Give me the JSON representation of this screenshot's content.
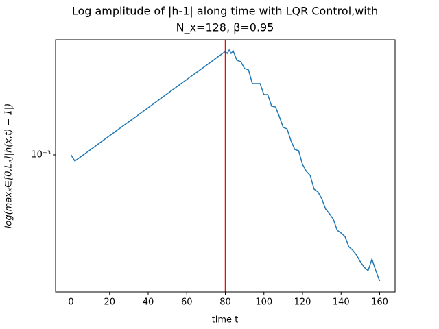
{
  "chart_data": {
    "type": "line",
    "title": [
      "Log amplitude of |h-1| along time with LQR Control,with",
      "N_x=128, β=0.95"
    ],
    "xlabel": "time t",
    "ylabel": "log(maxₓ∈[0,Lₓ]|h(x,t) − 1|)",
    "log_y": true,
    "x": [
      0,
      2,
      10,
      20,
      30,
      40,
      50,
      60,
      70,
      80,
      81,
      82,
      83,
      84,
      86,
      88,
      90,
      92,
      94,
      98,
      100,
      102,
      104,
      106,
      108,
      110,
      112,
      114,
      116,
      118,
      120,
      122,
      124,
      126,
      128,
      130,
      132,
      134,
      136,
      138,
      140,
      142,
      144,
      146,
      148,
      150,
      152,
      154,
      156,
      158,
      160
    ],
    "series": [
      {
        "color": "#1f77b4",
        "values": [
          0.001,
          0.00095,
          0.001043,
          0.001175,
          0.001321,
          0.001486,
          0.001674,
          0.001884,
          0.002118,
          0.002385,
          0.002344,
          0.002413,
          0.002344,
          0.002399,
          0.002213,
          0.002188,
          0.002065,
          0.002042,
          0.00182,
          0.00182,
          0.00166,
          0.00166,
          0.001505,
          0.001496,
          0.00138,
          0.001259,
          0.001245,
          0.001128,
          0.001047,
          0.001035,
          0.0009226,
          0.000871,
          0.0008414,
          0.0007499,
          0.0007328,
          0.0006918,
          0.0006345,
          0.0006095,
          0.0005821,
          0.0005309,
          0.0005188,
          0.0005041,
          0.0004624,
          0.0004493,
          0.0004315,
          0.0004074,
          0.000389,
          0.000378,
          0.0004169,
          0.000378,
          0.0003467
        ]
      }
    ],
    "vline": {
      "x": 80,
      "color": "red"
    },
    "xlim": [
      -8,
      168
    ],
    "xticks": [
      0,
      20,
      40,
      60,
      80,
      100,
      120,
      140,
      160
    ],
    "ylim": [
      0.0003162,
      0.00263
    ],
    "yticks": [
      {
        "value": 0.001,
        "label": "10⁻³"
      }
    ]
  }
}
